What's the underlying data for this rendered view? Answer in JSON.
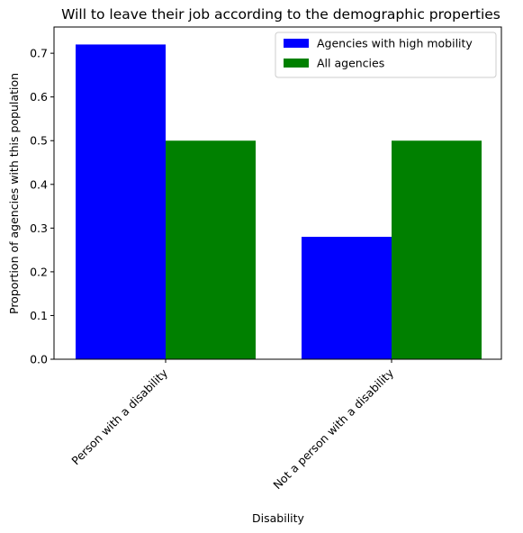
{
  "chart_data": {
    "type": "bar",
    "title": "Will to leave their job according to the demographic properties",
    "xlabel": "Disability",
    "ylabel": "Proportion of agencies with this population",
    "categories": [
      "Person with a disability",
      "Not a person with a disability"
    ],
    "series": [
      {
        "name": "Agencies with high mobility",
        "color": "#0000ff",
        "values": [
          0.72,
          0.28
        ]
      },
      {
        "name": "All agencies",
        "color": "#008000",
        "values": [
          0.5,
          0.5
        ]
      }
    ],
    "ylim": [
      0,
      0.76
    ],
    "yticks": [
      "0.0",
      "0.1",
      "0.2",
      "0.3",
      "0.4",
      "0.5",
      "0.6",
      "0.7"
    ],
    "grid": false,
    "legend_position": "top-right"
  }
}
